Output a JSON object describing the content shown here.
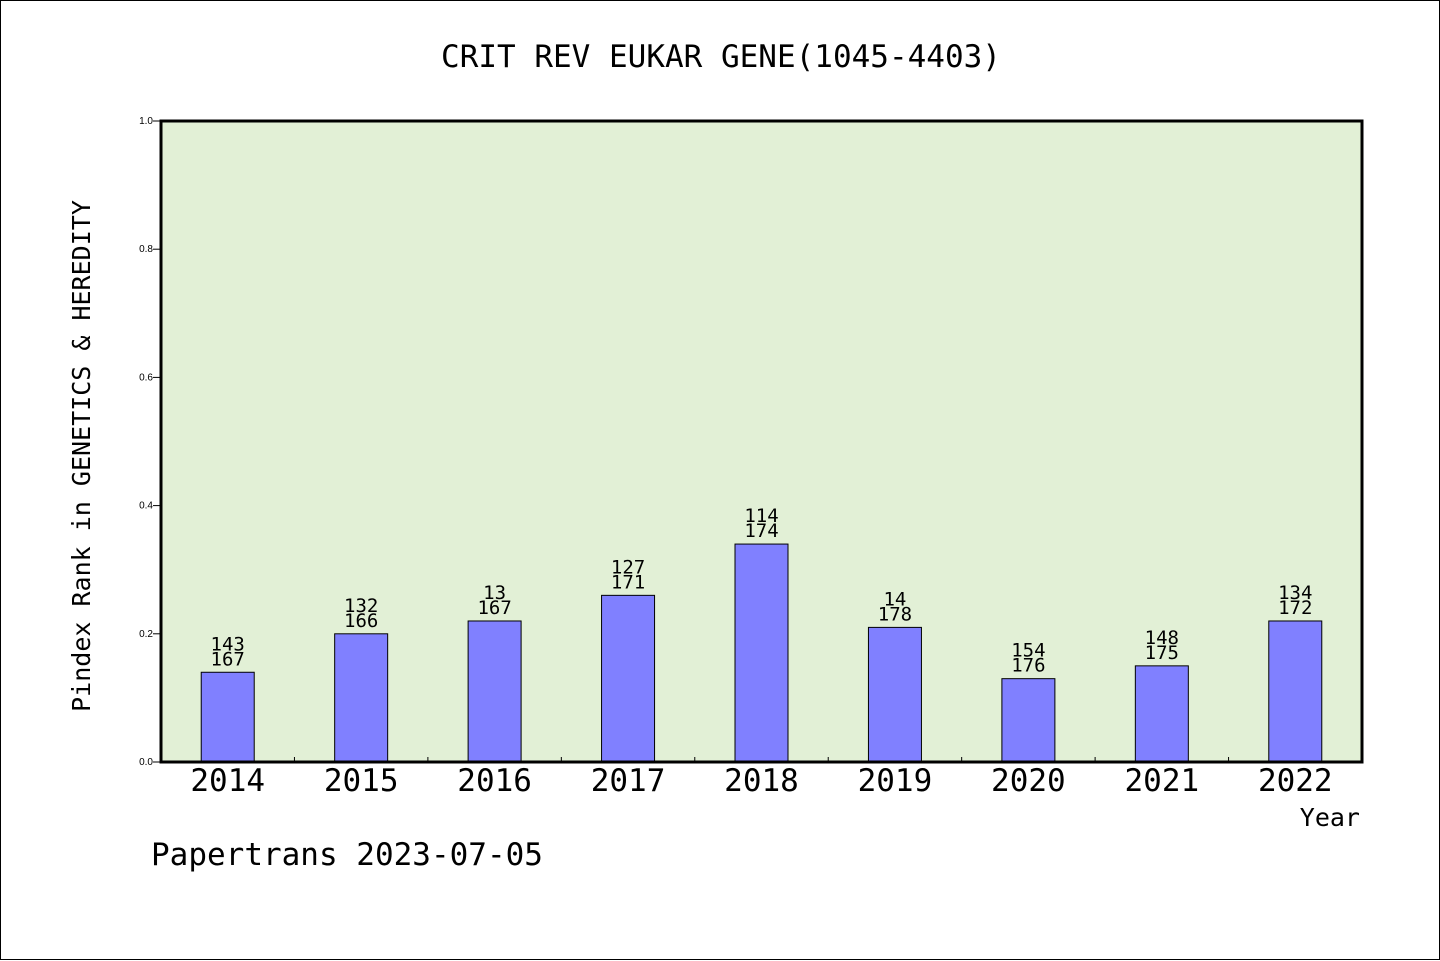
{
  "chart_data": {
    "type": "bar",
    "title": "CRIT REV EUKAR GENE(1045-4403)",
    "ylabel": "Pindex Rank in GENETICS & HEREDITY",
    "xlabel": "Year",
    "ylim": [
      0,
      1.0
    ],
    "yticks": [
      "0.0",
      "0.2",
      "0.4",
      "0.6",
      "0.8",
      "1.0"
    ],
    "categories": [
      "2014",
      "2015",
      "2016",
      "2017",
      "2018",
      "2019",
      "2020",
      "2021",
      "2022"
    ],
    "values": [
      0.14,
      0.2,
      0.22,
      0.26,
      0.34,
      0.21,
      0.13,
      0.15,
      0.22
    ],
    "labels_top": [
      "143",
      "132",
      "13",
      "127",
      "114",
      "14",
      "154",
      "148",
      "134"
    ],
    "labels_bottom": [
      "167",
      "166",
      "167",
      "171",
      "174",
      "178",
      "176",
      "175",
      "172"
    ],
    "bar_color": "#8080ff",
    "plot_background": "#e2f0d6",
    "grid": false,
    "footer": "Papertrans 2023-07-05"
  }
}
